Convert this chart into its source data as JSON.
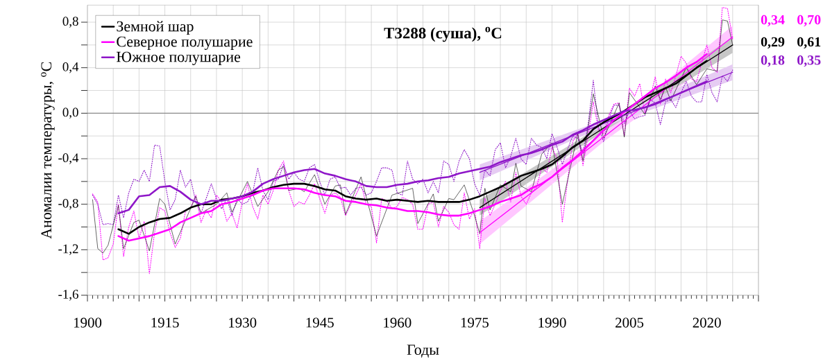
{
  "chart_data": {
    "type": "line",
    "title": "T3288 (суша), $^{o}$C",
    "xlabel": "Годы",
    "ylabel": "Аномалии температуры, $^{o}$C",
    "xlim": [
      1900,
      2030
    ],
    "ylim": [
      -1.6,
      0.95
    ],
    "xticks": [
      1900,
      {
        "value": 1905,
        "label": null
      },
      {
        "value": 1910,
        "label": null
      },
      1915,
      {
        "value": 1920,
        "label": null
      },
      {
        "value": 1925,
        "label": null
      },
      1930,
      {
        "value": 1935,
        "label": null
      },
      {
        "value": 1940,
        "label": null
      },
      1945,
      {
        "value": 1950,
        "label": null
      },
      {
        "value": 1955,
        "label": null
      },
      1960,
      {
        "value": 1965,
        "label": null
      },
      {
        "value": 1970,
        "label": null
      },
      1975,
      {
        "value": 1980,
        "label": null
      },
      {
        "value": 1985,
        "label": null
      },
      1990,
      {
        "value": 1995,
        "label": null
      },
      {
        "value": 2000,
        "label": null
      },
      2005,
      {
        "value": 2010,
        "label": null
      },
      {
        "value": 2015,
        "label": null
      },
      2020,
      {
        "value": 2025,
        "label": null
      },
      {
        "value": 2030,
        "label": null
      }
    ],
    "yticks": [
      {
        "value": -1.6,
        "label": "-1,6"
      },
      {
        "value": -1.4,
        "label": null
      },
      {
        "value": -1.2,
        "label": "-1,2"
      },
      {
        "value": -1.0,
        "label": null
      },
      {
        "value": -0.8,
        "label": "-0,8"
      },
      {
        "value": -0.6,
        "label": null
      },
      {
        "value": -0.4,
        "label": "-0,4"
      },
      {
        "value": -0.2,
        "label": null
      },
      {
        "value": 0.0,
        "label": "0,0"
      },
      {
        "value": 0.2,
        "label": null
      },
      {
        "value": 0.4,
        "label": "0,4"
      },
      {
        "value": 0.6,
        "label": null
      },
      {
        "value": 0.8,
        "label": "0,8"
      }
    ],
    "grid": true,
    "legend": "top left",
    "ref_lines": [
      {
        "axis": "y",
        "value": 0,
        "color": "#8c8c8c"
      }
    ],
    "annotations": [
      "0,34",
      "0,70",
      "0,29",
      "0,61",
      "0,18",
      "0,35"
    ],
    "x": [
      1901,
      1902,
      1903,
      1904,
      1905,
      1906,
      1907,
      1908,
      1909,
      1910,
      1911,
      1912,
      1913,
      1914,
      1915,
      1916,
      1917,
      1918,
      1919,
      1920,
      1921,
      1922,
      1923,
      1924,
      1925,
      1926,
      1927,
      1928,
      1929,
      1930,
      1931,
      1932,
      1933,
      1934,
      1935,
      1936,
      1937,
      1938,
      1939,
      1940,
      1941,
      1942,
      1943,
      1944,
      1945,
      1946,
      1947,
      1948,
      1949,
      1950,
      1951,
      1952,
      1953,
      1954,
      1955,
      1956,
      1957,
      1958,
      1959,
      1960,
      1961,
      1962,
      1963,
      1964,
      1965,
      1966,
      1967,
      1968,
      1969,
      1970,
      1971,
      1972,
      1973,
      1974,
      1975,
      1976,
      1977,
      1978,
      1979,
      1980,
      1981,
      1982,
      1983,
      1984,
      1985,
      1986,
      1987,
      1988,
      1989,
      1990,
      1991,
      1992,
      1993,
      1994,
      1995,
      1996,
      1997,
      1998,
      1999,
      2000,
      2001,
      2002,
      2003,
      2004,
      2005,
      2006,
      2007,
      2008,
      2009,
      2010,
      2011,
      2012,
      2013,
      2014,
      2015,
      2016,
      2017,
      2018,
      2019,
      2020,
      2021,
      2022,
      2023,
      2024,
      2025
    ],
    "series": [
      {
        "color": "#ff00ff",
        "line_style": "dotted",
        "values": [
          -0.71,
          -0.78,
          -1.29,
          -1.27,
          -1.15,
          -0.8,
          -1.26,
          -1.0,
          -0.86,
          -1.1,
          -0.95,
          -1.41,
          -1.05,
          -0.83,
          -0.86,
          -1.05,
          -1.18,
          -1.1,
          -0.86,
          -0.83,
          -0.72,
          -0.96,
          -0.85,
          -0.92,
          -0.72,
          -0.78,
          -0.95,
          -0.88,
          -1.01,
          -0.78,
          -0.62,
          -0.82,
          -0.93,
          -0.72,
          -0.8,
          -0.68,
          -0.5,
          -0.42,
          -0.68,
          -0.82,
          -0.78,
          -0.8,
          -0.72,
          -0.62,
          -0.75,
          -0.88,
          -0.72,
          -0.7,
          -0.74,
          -0.9,
          -0.8,
          -0.72,
          -0.62,
          -0.8,
          -0.82,
          -1.14,
          -0.75,
          -0.77,
          -0.84,
          -0.82,
          -0.74,
          -0.76,
          -0.8,
          -1.02,
          -1.02,
          -0.8,
          -0.78,
          -1.0,
          -0.82,
          -0.87,
          -0.98,
          -1.02,
          -0.7,
          -0.93,
          -0.84,
          -1.19,
          -0.75,
          -0.9,
          -0.8,
          -0.68,
          -0.6,
          -0.78,
          -0.52,
          -0.73,
          -0.8,
          -0.7,
          -0.65,
          -0.48,
          -0.52,
          -0.3,
          -0.4,
          -0.96,
          -0.6,
          -0.25,
          -0.18,
          -0.46,
          -0.2,
          0.1,
          -0.15,
          -0.18,
          -0.02,
          0.08,
          0.09,
          -0.2,
          0.22,
          0.15,
          0.26,
          0.0,
          0.13,
          0.32,
          0.08,
          0.3,
          0.18,
          0.33,
          0.5,
          0.44,
          0.3,
          0.28,
          0.44,
          0.6,
          0.4,
          0.36,
          0.93,
          0.92,
          0.65
        ]
      },
      {
        "color": "#8e16c8",
        "line_style": "dotted",
        "values": [
          -0.72,
          -0.8,
          -0.98,
          -0.97,
          -0.98,
          -0.72,
          -0.92,
          -0.7,
          -0.58,
          -0.6,
          -0.5,
          -0.6,
          -0.28,
          -0.29,
          -0.6,
          -0.85,
          -0.76,
          -0.5,
          -0.65,
          -0.58,
          -0.78,
          -0.88,
          -0.75,
          -0.62,
          -0.75,
          -0.84,
          -0.75,
          -0.9,
          -0.75,
          -0.8,
          -0.78,
          -0.7,
          -0.48,
          -0.68,
          -0.76,
          -0.6,
          -0.58,
          -0.45,
          -0.58,
          -0.52,
          -0.58,
          -0.6,
          -0.48,
          -0.45,
          -0.6,
          -0.72,
          -0.58,
          -0.56,
          -0.66,
          -0.65,
          -0.72,
          -0.66,
          -0.65,
          -0.72,
          -0.7,
          -0.6,
          -0.48,
          -0.48,
          -0.5,
          -0.7,
          -0.72,
          -0.42,
          -0.58,
          -0.62,
          -0.58,
          -0.7,
          -0.6,
          -0.7,
          -0.42,
          -0.45,
          -0.6,
          -0.42,
          -0.32,
          -0.4,
          -0.62,
          -0.72,
          -0.5,
          -0.55,
          -0.32,
          -0.26,
          -0.48,
          -0.38,
          -0.22,
          -0.4,
          -0.45,
          -0.22,
          -0.28,
          -0.3,
          -0.4,
          -0.18,
          -0.3,
          -0.45,
          -0.32,
          -0.2,
          -0.22,
          -0.35,
          -0.1,
          0.29,
          -0.12,
          -0.25,
          -0.05,
          0.07,
          0.07,
          -0.09,
          0.02,
          -0.05,
          -0.03,
          -0.02,
          0.12,
          0.09,
          -0.1,
          0.1,
          0.12,
          0.05,
          0.18,
          0.28,
          0.15,
          0.1,
          0.1,
          0.34,
          0.18,
          0.1,
          0.33,
          0.28,
          0.38
        ]
      },
      {
        "color": "#000000",
        "x": [
          1901,
          1902,
          1903,
          1904,
          1906,
          1907,
          1909,
          1910,
          1912,
          1914,
          1915,
          1917,
          1921,
          1922,
          1925,
          1927,
          1928,
          1931,
          1933,
          1935,
          1937,
          1938,
          1939,
          1941,
          1942,
          1944,
          1946,
          1948,
          1949,
          1950,
          1953,
          1956,
          1959,
          1961,
          1963,
          1964,
          1967,
          1968,
          1970,
          1971,
          1973,
          1975,
          1976,
          1977,
          1978,
          1980,
          1982,
          1983,
          1984,
          1986,
          1988,
          1990,
          1992,
          1995,
          1996,
          1998,
          2000,
          2003,
          2004,
          2005,
          2008,
          2010,
          2011,
          2012,
          2013,
          2016,
          2018,
          2020,
          2022,
          2023,
          2024,
          2025
        ],
        "values": [
          -0.76,
          -1.19,
          -1.23,
          -1.16,
          -0.81,
          -1.19,
          -0.96,
          -0.94,
          -1.21,
          -0.75,
          -0.8,
          -1.15,
          -0.73,
          -0.88,
          -0.8,
          -0.7,
          -0.87,
          -0.6,
          -0.82,
          -0.69,
          -0.5,
          -0.47,
          -0.68,
          -0.66,
          -0.69,
          -0.54,
          -0.8,
          -0.64,
          -0.63,
          -0.89,
          -0.56,
          -1.08,
          -0.72,
          -0.69,
          -0.66,
          -0.97,
          -0.71,
          -0.95,
          -0.75,
          -0.76,
          -0.63,
          -0.9,
          -1.06,
          -0.66,
          -0.85,
          -0.63,
          -0.69,
          -0.44,
          -0.64,
          -0.69,
          -0.36,
          -0.26,
          -0.8,
          -0.18,
          -0.42,
          0.17,
          -0.22,
          0.09,
          -0.21,
          0.18,
          -0.01,
          0.24,
          0.12,
          0.23,
          0.11,
          0.4,
          0.25,
          0.39,
          0.37,
          0.82,
          0.81,
          0.6
        ]
      },
      {
        "color": "#ff00ff",
        "x": [
          1976,
          2000,
          2025
        ],
        "values": [
          -1.05,
          -0.21,
          0.67
        ],
        "lower": [
          -1.15,
          -0.25,
          0.57
        ],
        "upper": [
          -0.95,
          -0.17,
          0.77
        ]
      },
      {
        "color": "#000000",
        "x": [
          1976,
          2000,
          2025
        ],
        "values": [
          -0.83,
          -0.13,
          0.6
        ],
        "lower": [
          -0.9,
          -0.16,
          0.53
        ],
        "upper": [
          -0.76,
          -0.1,
          0.67
        ]
      },
      {
        "color": "#8e16c8",
        "x": [
          1976,
          2000,
          2025
        ],
        "values": [
          -0.52,
          -0.09,
          0.36
        ],
        "lower": [
          -0.59,
          -0.12,
          0.29
        ],
        "upper": [
          -0.45,
          -0.06,
          0.43
        ]
      },
      {
        "name": "Земной шар",
        "color": "#000000",
        "x": [
          1906,
          1908,
          1910,
          1912,
          1914,
          1916,
          1918,
          1920,
          1922,
          1924,
          1926,
          1928,
          1930,
          1932,
          1934,
          1936,
          1938,
          1940,
          1942,
          1944,
          1946,
          1948,
          1950,
          1952,
          1954,
          1956,
          1958,
          1960,
          1962,
          1964,
          1966,
          1968,
          1970,
          1972,
          1974,
          1976,
          1978,
          1980,
          1982,
          1984,
          1986,
          1988,
          1990,
          1992,
          1994,
          1996,
          1998,
          2000,
          2002,
          2004,
          2006,
          2008,
          2010,
          2012,
          2014,
          2016,
          2018,
          2020
        ],
        "values": [
          -1.02,
          -1.06,
          -1.0,
          -0.96,
          -0.93,
          -0.92,
          -0.88,
          -0.83,
          -0.8,
          -0.8,
          -0.76,
          -0.75,
          -0.73,
          -0.7,
          -0.68,
          -0.65,
          -0.63,
          -0.62,
          -0.62,
          -0.64,
          -0.67,
          -0.68,
          -0.73,
          -0.75,
          -0.76,
          -0.75,
          -0.77,
          -0.76,
          -0.77,
          -0.78,
          -0.77,
          -0.78,
          -0.78,
          -0.78,
          -0.76,
          -0.73,
          -0.69,
          -0.65,
          -0.6,
          -0.55,
          -0.52,
          -0.49,
          -0.45,
          -0.38,
          -0.3,
          -0.24,
          -0.14,
          -0.08,
          -0.03,
          0.02,
          0.08,
          0.14,
          0.18,
          0.22,
          0.26,
          0.33,
          0.4,
          0.46
        ]
      },
      {
        "name": "Северное полушарие",
        "color": "#ff00ff",
        "x": [
          1906,
          1908,
          1910,
          1912,
          1914,
          1916,
          1918,
          1920,
          1922,
          1924,
          1926,
          1928,
          1930,
          1932,
          1934,
          1936,
          1938,
          1940,
          1942,
          1944,
          1946,
          1948,
          1950,
          1952,
          1954,
          1956,
          1958,
          1960,
          1962,
          1964,
          1966,
          1968,
          1970,
          1972,
          1974,
          1976,
          1978,
          1980,
          1982,
          1984,
          1986,
          1988,
          1990,
          1992,
          1994,
          1996,
          1998,
          2000,
          2002,
          2004,
          2006,
          2008,
          2010,
          2012,
          2014,
          2016,
          2018,
          2020
        ],
        "values": [
          -1.08,
          -1.12,
          -1.1,
          -1.08,
          -1.05,
          -1.02,
          -0.96,
          -0.92,
          -0.88,
          -0.86,
          -0.8,
          -0.78,
          -0.75,
          -0.72,
          -0.68,
          -0.66,
          -0.66,
          -0.66,
          -0.67,
          -0.7,
          -0.72,
          -0.73,
          -0.77,
          -0.78,
          -0.8,
          -0.81,
          -0.83,
          -0.84,
          -0.86,
          -0.86,
          -0.87,
          -0.89,
          -0.9,
          -0.9,
          -0.88,
          -0.85,
          -0.82,
          -0.78,
          -0.75,
          -0.72,
          -0.66,
          -0.62,
          -0.56,
          -0.48,
          -0.41,
          -0.33,
          -0.24,
          -0.15,
          -0.06,
          0.01,
          0.08,
          0.15,
          0.22,
          0.27,
          0.33,
          0.4,
          0.45,
          0.52
        ]
      },
      {
        "name": "Южное полушарие",
        "color": "#8e16c8",
        "x": [
          1906,
          1908,
          1910,
          1912,
          1914,
          1916,
          1918,
          1920,
          1922,
          1924,
          1926,
          1928,
          1930,
          1932,
          1934,
          1936,
          1938,
          1940,
          1942,
          1944,
          1946,
          1948,
          1950,
          1952,
          1954,
          1956,
          1958,
          1960,
          1962,
          1964,
          1966,
          1968,
          1970,
          1972,
          1974,
          1976,
          1978,
          1980,
          1982,
          1984,
          1986,
          1988,
          1990,
          1992,
          1994,
          1996,
          1998,
          2000,
          2002,
          2004,
          2006,
          2008,
          2010,
          2012,
          2014,
          2016,
          2018,
          2020
        ],
        "values": [
          -0.88,
          -0.85,
          -0.73,
          -0.72,
          -0.65,
          -0.64,
          -0.69,
          -0.76,
          -0.8,
          -0.77,
          -0.77,
          -0.75,
          -0.73,
          -0.69,
          -0.62,
          -0.58,
          -0.55,
          -0.52,
          -0.5,
          -0.49,
          -0.53,
          -0.55,
          -0.58,
          -0.6,
          -0.64,
          -0.65,
          -0.65,
          -0.63,
          -0.62,
          -0.6,
          -0.59,
          -0.57,
          -0.56,
          -0.53,
          -0.51,
          -0.49,
          -0.47,
          -0.43,
          -0.4,
          -0.37,
          -0.35,
          -0.32,
          -0.28,
          -0.25,
          -0.19,
          -0.15,
          -0.1,
          -0.06,
          -0.02,
          0.02,
          0.03,
          0.05,
          0.08,
          0.12,
          0.16,
          0.2,
          0.24,
          0.28
        ]
      }
    ]
  }
}
